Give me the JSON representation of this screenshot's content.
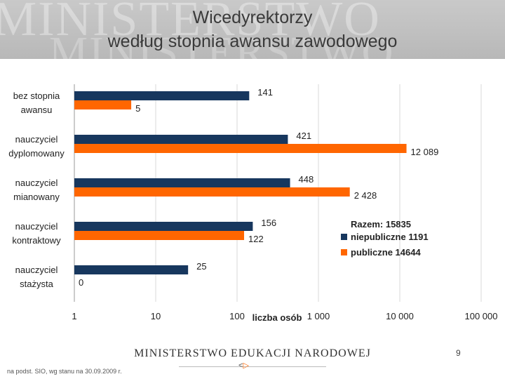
{
  "header": {
    "watermark_text": "MINISTERSTWO",
    "title_line1": "Wicedyrektorzy",
    "title_line2": "według stopnia awansu zawodowego"
  },
  "chart_data": {
    "type": "bar",
    "orientation": "horizontal",
    "xscale": "log",
    "xlim": [
      1,
      100000
    ],
    "xticks": [
      1,
      10,
      100,
      1000,
      10000,
      100000
    ],
    "xtick_labels": [
      "1",
      "10",
      "100",
      "1 000",
      "10 000",
      "100 000"
    ],
    "xlabel": "liczba osób",
    "grid": true,
    "categories": [
      [
        "bez stopnia",
        "awansu"
      ],
      [
        "nauczyciel",
        "dyplomowany"
      ],
      [
        "nauczyciel",
        "mianowany"
      ],
      [
        "nauczyciel",
        "kontraktowy"
      ],
      [
        "nauczyciel",
        "stażysta"
      ]
    ],
    "series": [
      {
        "name": "niepubliczne 1191",
        "color": "#17375e",
        "values": [
          141,
          421,
          448,
          156,
          25
        ],
        "value_labels": [
          "141",
          "421",
          "448",
          "156",
          "25"
        ]
      },
      {
        "name": "publiczne 14644",
        "color": "#ff6600",
        "values": [
          5,
          12089,
          2428,
          122,
          0
        ],
        "value_labels": [
          "5",
          "12 089",
          "2 428",
          "122",
          "0"
        ]
      }
    ],
    "legend_title": "Razem: 15835",
    "legend_position": "right"
  },
  "footer": {
    "ministry": "MINISTERSTWO EDUKACJI NARODOWEJ",
    "page_number": "9",
    "source": "na podst. SIO, wg stanu na 30.09.2009 r."
  }
}
